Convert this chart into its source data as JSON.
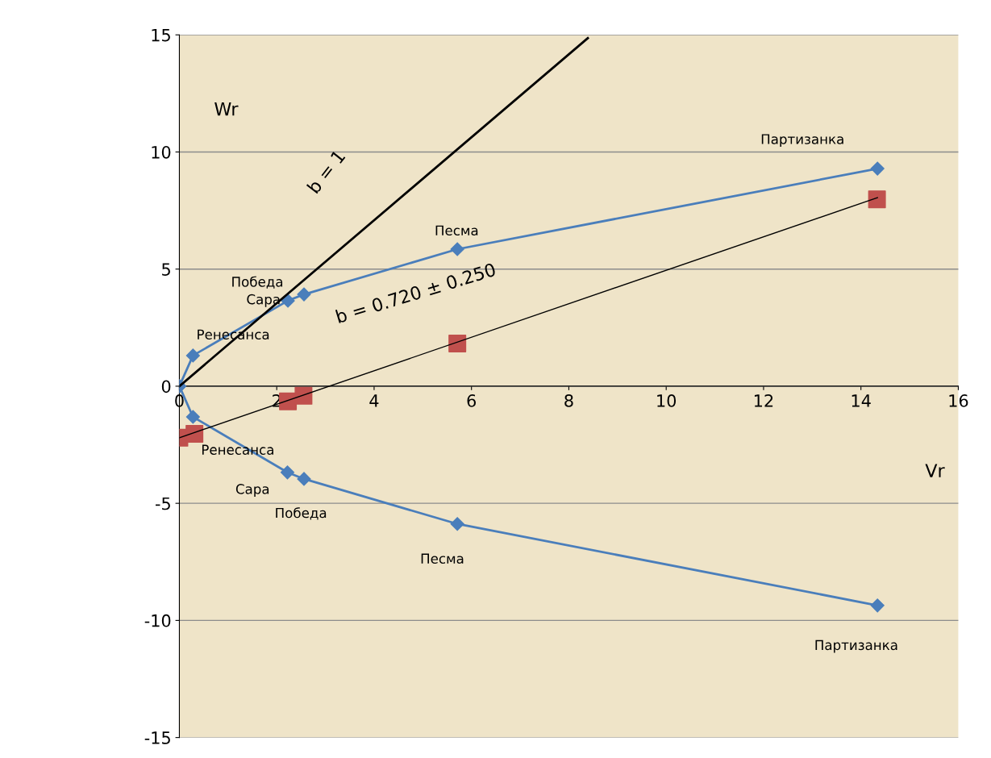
{
  "chart_data": {
    "type": "line",
    "xlabel": "Vr",
    "ylabel": "Wr",
    "xlim": [
      0,
      16
    ],
    "xticks": [
      0,
      2,
      4,
      6,
      8,
      10,
      12,
      14,
      16
    ],
    "ylim": [
      -15,
      15
    ],
    "yticks": [
      -15,
      -10,
      -5,
      0,
      5,
      10,
      15
    ],
    "grid": "y",
    "marker": "diamond",
    "line_style": "solid",
    "series": [
      {
        "color": "#4a7ebb",
        "x": [
          0,
          0.28,
          2.23,
          2.56,
          5.71,
          14.34
        ],
        "values": [
          0,
          1.31,
          3.65,
          3.92,
          5.85,
          9.29
        ]
      },
      {
        "color": "#4a7ebb",
        "x": [
          0,
          0.28,
          2.22,
          2.56,
          5.71,
          14.34
        ],
        "values": [
          0,
          -1.31,
          -3.68,
          -3.96,
          -5.88,
          -9.36
        ]
      },
      {
        "type": "scatter",
        "color": "#c0504d",
        "marker": "square",
        "x": [
          0,
          0.31,
          2.23,
          2.55,
          5.71,
          14.33
        ],
        "values": [
          -2.2,
          -2.03,
          -0.65,
          -0.41,
          1.82,
          7.98
        ]
      },
      {
        "color": "#000000",
        "marker": "none",
        "x": [
          0,
          8.39
        ],
        "values": [
          0,
          14.86
        ]
      },
      {
        "color": "#000000",
        "marker": "none",
        "x": [
          0,
          14.34
        ],
        "values": [
          -2.2,
          8.05
        ]
      }
    ],
    "annotations": [
      "Партизанка",
      "Песма",
      "Победа",
      "Сара",
      "Ренесанса",
      "Ренесанса",
      "Сара",
      "Победа",
      "Песма",
      "Партизанка",
      {
        "text": "b = 1",
        "x": 3.5,
        "y": 6.2
      },
      {
        "text": "b = 0.720 ± 0.250",
        "x": 5,
        "y": 1.38
      }
    ]
  }
}
